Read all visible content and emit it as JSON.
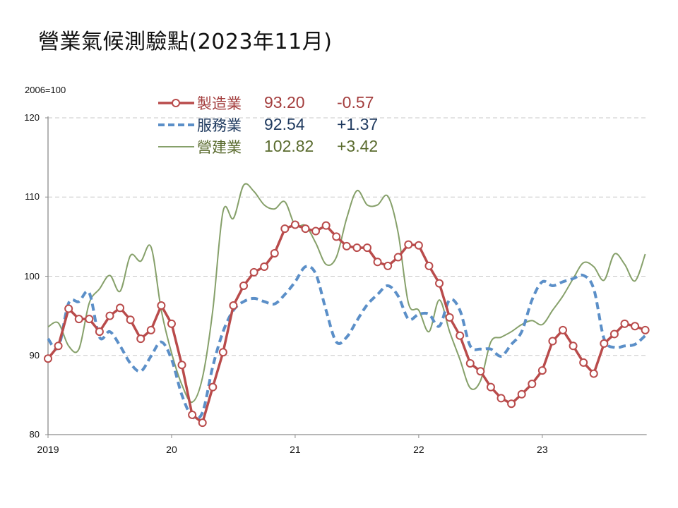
{
  "title": "營業氣候測驗點(2023年11月)",
  "unit_label": "2006=100",
  "legend": [
    {
      "name": "製造業",
      "value": "93.20",
      "change": "-0.57",
      "color": "#b94b4b",
      "text_color": "#a33d3d",
      "style": "solid-marker"
    },
    {
      "name": "服務業",
      "value": "92.54",
      "change": "+1.37",
      "color": "#5b8fc8",
      "text_color": "#1f3a5f",
      "style": "dashed"
    },
    {
      "name": "營建業",
      "value": "102.82",
      "change": "+3.42",
      "color": "#86a06a",
      "text_color": "#5a6b2e",
      "style": "thin"
    }
  ],
  "chart_data": {
    "type": "line",
    "title": "營業氣候測驗點(2023年11月)",
    "ylabel": "2006=100",
    "xlabel": "",
    "ylim": [
      80,
      120
    ],
    "yticks": [
      80,
      90,
      100,
      110,
      120
    ],
    "xtick_labels": [
      "2019",
      "20",
      "21",
      "22",
      "23"
    ],
    "x_start": "2019-01",
    "x_end": "2023-11",
    "grid": "horizontal dashed",
    "legend_position": "top-left inside",
    "series": [
      {
        "name": "製造業",
        "latest": 93.2,
        "change": -0.57,
        "values": [
          89.6,
          91.2,
          95.9,
          94.6,
          94.6,
          93.0,
          95.0,
          96.0,
          94.5,
          92.1,
          93.2,
          96.3,
          94.0,
          88.8,
          82.5,
          81.5,
          86.0,
          90.4,
          96.3,
          98.8,
          100.5,
          101.2,
          102.9,
          106.0,
          106.5,
          106.0,
          105.7,
          106.4,
          105.0,
          103.8,
          103.6,
          103.6,
          101.8,
          101.3,
          102.4,
          104.0,
          103.9,
          101.3,
          99.1,
          94.8,
          92.5,
          89.0,
          88.0,
          86.0,
          84.6,
          83.9,
          85.1,
          86.4,
          88.1,
          91.8,
          93.2,
          91.2,
          89.1,
          87.7,
          91.5,
          92.7,
          94.0,
          93.7,
          93.2
        ]
      },
      {
        "name": "服務業",
        "latest": 92.54,
        "change": 1.37,
        "values": [
          92.1,
          91.0,
          96.6,
          96.8,
          97.9,
          92.3,
          93.0,
          91.2,
          89.0,
          88.0,
          89.9,
          91.7,
          89.5,
          85.0,
          82.3,
          82.8,
          88.6,
          93.0,
          95.7,
          96.8,
          97.2,
          96.8,
          96.5,
          97.7,
          99.3,
          101.2,
          100.3,
          95.7,
          91.7,
          92.3,
          94.4,
          96.4,
          97.7,
          98.8,
          97.5,
          94.6,
          95.2,
          95.2,
          93.7,
          97.0,
          95.7,
          91.2,
          90.8,
          90.8,
          89.9,
          91.4,
          93.0,
          97.0,
          99.3,
          98.8,
          99.3,
          99.7,
          100.1,
          98.4,
          92.1,
          91.0,
          91.2,
          91.4,
          92.5
        ]
      },
      {
        "name": "營建業",
        "latest": 102.82,
        "change": 3.42,
        "values": [
          93.6,
          94.1,
          91.2,
          90.8,
          96.6,
          98.4,
          100.1,
          98.1,
          102.6,
          101.9,
          103.7,
          95.7,
          90.3,
          86.3,
          84.1,
          87.2,
          95.7,
          108.2,
          107.3,
          111.5,
          110.7,
          109.0,
          108.5,
          109.4,
          106.4,
          106.4,
          104.2,
          101.5,
          102.4,
          107.3,
          110.8,
          109.0,
          109.0,
          110.1,
          105.5,
          96.6,
          95.7,
          93.0,
          97.0,
          93.0,
          89.5,
          85.9,
          86.8,
          91.7,
          92.3,
          93.0,
          93.9,
          94.4,
          93.9,
          95.7,
          97.5,
          99.7,
          101.7,
          101.2,
          99.5,
          102.8,
          101.5,
          99.4,
          102.8
        ]
      }
    ]
  }
}
